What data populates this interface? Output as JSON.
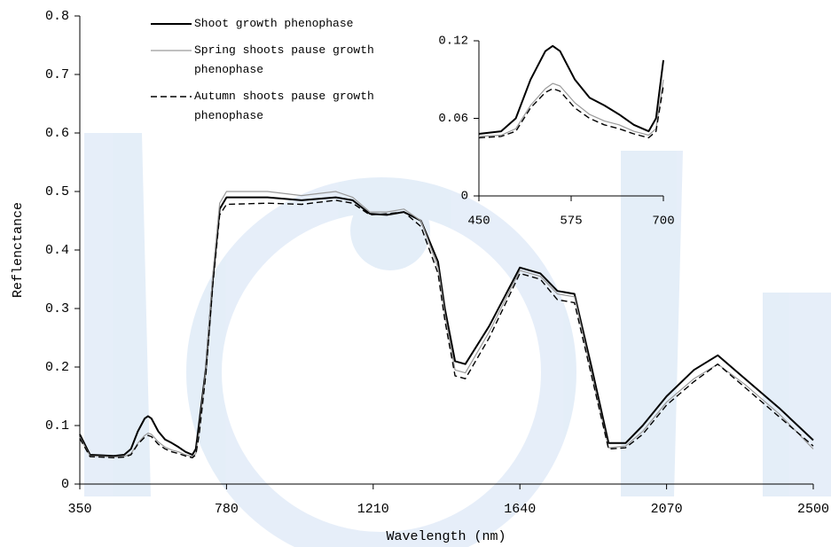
{
  "chart_data": {
    "type": "line",
    "xlabel": "Wavelength (nm)",
    "ylabel": "Reflenctance",
    "x": [
      350,
      380,
      450,
      480,
      500,
      520,
      540,
      550,
      560,
      580,
      600,
      620,
      640,
      660,
      680,
      690,
      700,
      720,
      740,
      760,
      780,
      900,
      1000,
      1100,
      1150,
      1200,
      1250,
      1300,
      1350,
      1400,
      1420,
      1450,
      1480,
      1550,
      1640,
      1700,
      1750,
      1800,
      1850,
      1900,
      1950,
      2000,
      2070,
      2150,
      2220,
      2300,
      2400,
      2500
    ],
    "series": [
      {
        "name": "Shoot growth phenophase",
        "color": "#000000",
        "linestyle": "solid",
        "linewidth": 2,
        "values": [
          0.085,
          0.05,
          0.048,
          0.05,
          0.06,
          0.09,
          0.112,
          0.116,
          0.112,
          0.09,
          0.076,
          0.07,
          0.063,
          0.055,
          0.05,
          0.06,
          0.105,
          0.2,
          0.35,
          0.47,
          0.49,
          0.49,
          0.485,
          0.49,
          0.485,
          0.462,
          0.46,
          0.465,
          0.45,
          0.38,
          0.3,
          0.21,
          0.205,
          0.27,
          0.37,
          0.36,
          0.33,
          0.325,
          0.2,
          0.07,
          0.07,
          0.1,
          0.15,
          0.195,
          0.22,
          0.18,
          0.13,
          0.075
        ]
      },
      {
        "name": "Spring shoots pause growth phenophase",
        "color": "#9a9a9a",
        "linestyle": "solid",
        "linewidth": 1.2,
        "values": [
          0.08,
          0.048,
          0.046,
          0.047,
          0.052,
          0.07,
          0.083,
          0.087,
          0.085,
          0.072,
          0.063,
          0.058,
          0.055,
          0.05,
          0.047,
          0.052,
          0.09,
          0.2,
          0.36,
          0.48,
          0.5,
          0.5,
          0.493,
          0.5,
          0.49,
          0.465,
          0.465,
          0.47,
          0.45,
          0.37,
          0.29,
          0.195,
          0.19,
          0.26,
          0.365,
          0.355,
          0.325,
          0.32,
          0.19,
          0.062,
          0.065,
          0.09,
          0.14,
          0.18,
          0.205,
          0.17,
          0.12,
          0.06
        ]
      },
      {
        "name": "Autumn shoots pause growth phenophase",
        "color": "#000000",
        "linestyle": "dashed",
        "linewidth": 1.4,
        "values": [
          0.078,
          0.047,
          0.045,
          0.046,
          0.05,
          0.068,
          0.08,
          0.083,
          0.081,
          0.068,
          0.06,
          0.055,
          0.052,
          0.048,
          0.045,
          0.05,
          0.085,
          0.19,
          0.34,
          0.46,
          0.478,
          0.48,
          0.478,
          0.485,
          0.48,
          0.46,
          0.462,
          0.465,
          0.44,
          0.36,
          0.28,
          0.185,
          0.18,
          0.25,
          0.36,
          0.35,
          0.315,
          0.31,
          0.185,
          0.06,
          0.062,
          0.085,
          0.135,
          0.175,
          0.205,
          0.165,
          0.115,
          0.065
        ]
      }
    ],
    "xlim": [
      350,
      2500
    ],
    "xticks": [
      350,
      780,
      1210,
      1640,
      2070,
      2500
    ],
    "ylim": [
      0,
      0.8
    ],
    "yticks": [
      0,
      0.1,
      0.2,
      0.3,
      0.4,
      0.5,
      0.6,
      0.7,
      0.8
    ],
    "legend": "upper left",
    "inset": {
      "xlim": [
        450,
        700
      ],
      "xticks": [
        450,
        575,
        700
      ],
      "ylim": [
        0,
        0.12
      ],
      "yticks": [
        0,
        0.06,
        0.12
      ]
    }
  }
}
